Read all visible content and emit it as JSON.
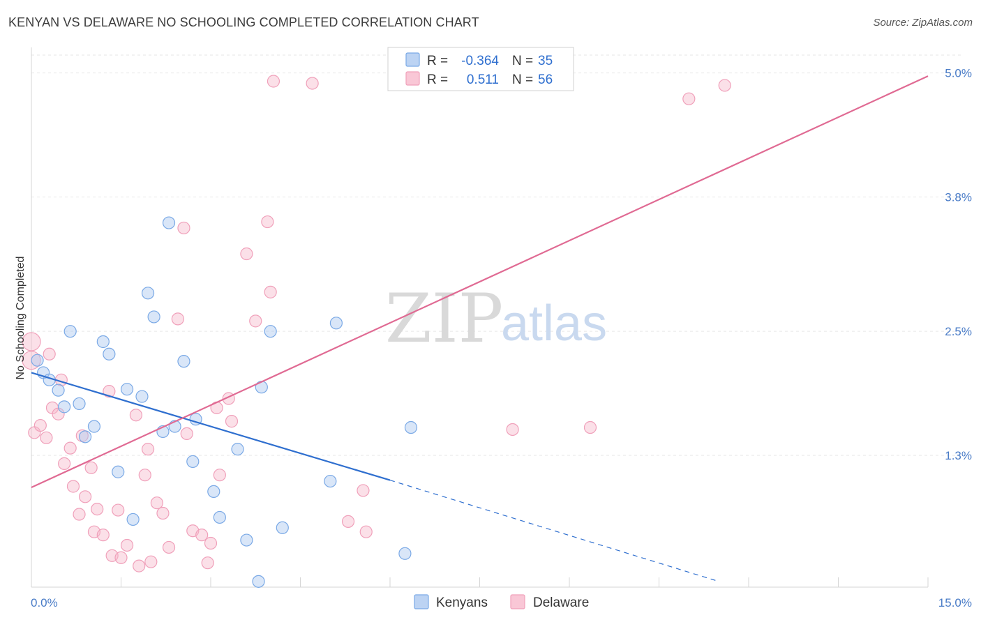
{
  "header": {
    "title": "KENYAN VS DELAWARE NO SCHOOLING COMPLETED CORRELATION CHART",
    "source": "Source: ZipAtlas.com"
  },
  "watermark": {
    "zip": "ZIP",
    "atlas": "atlas"
  },
  "legend": {
    "rows": [
      {
        "r_label": "R =",
        "r_value": "-0.364",
        "n_label": "N =",
        "n_value": "35",
        "color": "#6fa4e6"
      },
      {
        "r_label": "R =",
        "r_value": "0.511",
        "n_label": "N =",
        "n_value": "56",
        "color": "#f08cab"
      }
    ]
  },
  "chart_data": {
    "type": "scatter",
    "title": "KENYAN VS DELAWARE NO SCHOOLING COMPLETED CORRELATION CHART",
    "xlabel": "",
    "ylabel": "No Schooling Completed",
    "xlim": [
      0,
      15
    ],
    "ylim": [
      0.025,
      5.2
    ],
    "x_tick_labels": [
      "0.0%",
      "15.0%"
    ],
    "y_ticks": [
      1.3,
      2.5,
      3.8,
      5.0
    ],
    "y_tick_labels": [
      "1.3%",
      "2.5%",
      "3.8%",
      "5.0%"
    ],
    "grid": true,
    "legend_position": "bottom-center",
    "series": [
      {
        "name": "Kenyans",
        "color": "#6fa4e6",
        "trend": {
          "x": [
            0,
            6.0
          ],
          "y": [
            2.1,
            1.06
          ],
          "dashed_to": [
            11.5,
            0.08
          ]
        },
        "points": [
          [
            0.1,
            2.22
          ],
          [
            0.2,
            2.1
          ],
          [
            0.3,
            2.03
          ],
          [
            0.45,
            1.93
          ],
          [
            0.55,
            1.77
          ],
          [
            0.65,
            2.5
          ],
          [
            0.8,
            1.8
          ],
          [
            0.9,
            1.48
          ],
          [
            1.05,
            1.58
          ],
          [
            1.2,
            2.4
          ],
          [
            1.3,
            2.28
          ],
          [
            1.45,
            1.14
          ],
          [
            1.6,
            1.94
          ],
          [
            1.7,
            0.68
          ],
          [
            1.85,
            1.87
          ],
          [
            1.95,
            2.87
          ],
          [
            2.05,
            2.64
          ],
          [
            2.2,
            1.53
          ],
          [
            2.3,
            3.55
          ],
          [
            2.4,
            1.58
          ],
          [
            2.55,
            2.21
          ],
          [
            2.7,
            1.24
          ],
          [
            2.75,
            1.65
          ],
          [
            3.05,
            0.95
          ],
          [
            3.15,
            0.7
          ],
          [
            3.45,
            1.36
          ],
          [
            3.6,
            0.48
          ],
          [
            3.8,
            0.08
          ],
          [
            3.85,
            1.96
          ],
          [
            4.0,
            2.5
          ],
          [
            4.2,
            0.6
          ],
          [
            5.0,
            1.05
          ],
          [
            5.1,
            2.58
          ],
          [
            6.25,
            0.35
          ],
          [
            6.35,
            1.57
          ]
        ]
      },
      {
        "name": "Delaware",
        "color": "#f08cab",
        "trend": {
          "x": [
            0,
            15
          ],
          "y": [
            0.99,
            4.97
          ]
        },
        "points": [
          [
            0.0,
            2.4
          ],
          [
            0.05,
            1.52
          ],
          [
            0.15,
            1.59
          ],
          [
            0.25,
            1.47
          ],
          [
            0.3,
            2.28
          ],
          [
            0.35,
            1.76
          ],
          [
            0.45,
            1.7
          ],
          [
            0.5,
            2.03
          ],
          [
            0.55,
            1.22
          ],
          [
            0.65,
            1.37
          ],
          [
            0.7,
            1.0
          ],
          [
            0.8,
            0.73
          ],
          [
            0.85,
            1.49
          ],
          [
            0.9,
            0.9
          ],
          [
            1.0,
            1.18
          ],
          [
            1.05,
            0.56
          ],
          [
            1.1,
            0.78
          ],
          [
            1.2,
            0.53
          ],
          [
            1.3,
            1.92
          ],
          [
            1.35,
            0.33
          ],
          [
            1.45,
            0.77
          ],
          [
            1.5,
            0.31
          ],
          [
            1.6,
            0.43
          ],
          [
            1.75,
            1.69
          ],
          [
            1.8,
            0.23
          ],
          [
            1.9,
            1.11
          ],
          [
            1.95,
            1.36
          ],
          [
            2.0,
            0.27
          ],
          [
            2.1,
            0.84
          ],
          [
            2.2,
            0.74
          ],
          [
            2.3,
            0.41
          ],
          [
            2.45,
            2.62
          ],
          [
            2.55,
            3.5
          ],
          [
            2.6,
            1.51
          ],
          [
            2.7,
            0.57
          ],
          [
            2.85,
            0.53
          ],
          [
            2.95,
            0.26
          ],
          [
            3.0,
            0.45
          ],
          [
            3.1,
            1.76
          ],
          [
            3.15,
            1.11
          ],
          [
            3.3,
            1.85
          ],
          [
            3.35,
            1.63
          ],
          [
            3.6,
            3.25
          ],
          [
            3.75,
            2.6
          ],
          [
            3.95,
            3.56
          ],
          [
            4.0,
            2.88
          ],
          [
            4.05,
            4.92
          ],
          [
            4.7,
            4.9
          ],
          [
            5.3,
            0.66
          ],
          [
            5.55,
            0.96
          ],
          [
            5.6,
            0.56
          ],
          [
            8.05,
            1.55
          ],
          [
            9.35,
            1.57
          ],
          [
            11.0,
            4.75
          ],
          [
            11.6,
            4.88
          ],
          [
            0.0,
            2.22
          ]
        ]
      }
    ]
  }
}
